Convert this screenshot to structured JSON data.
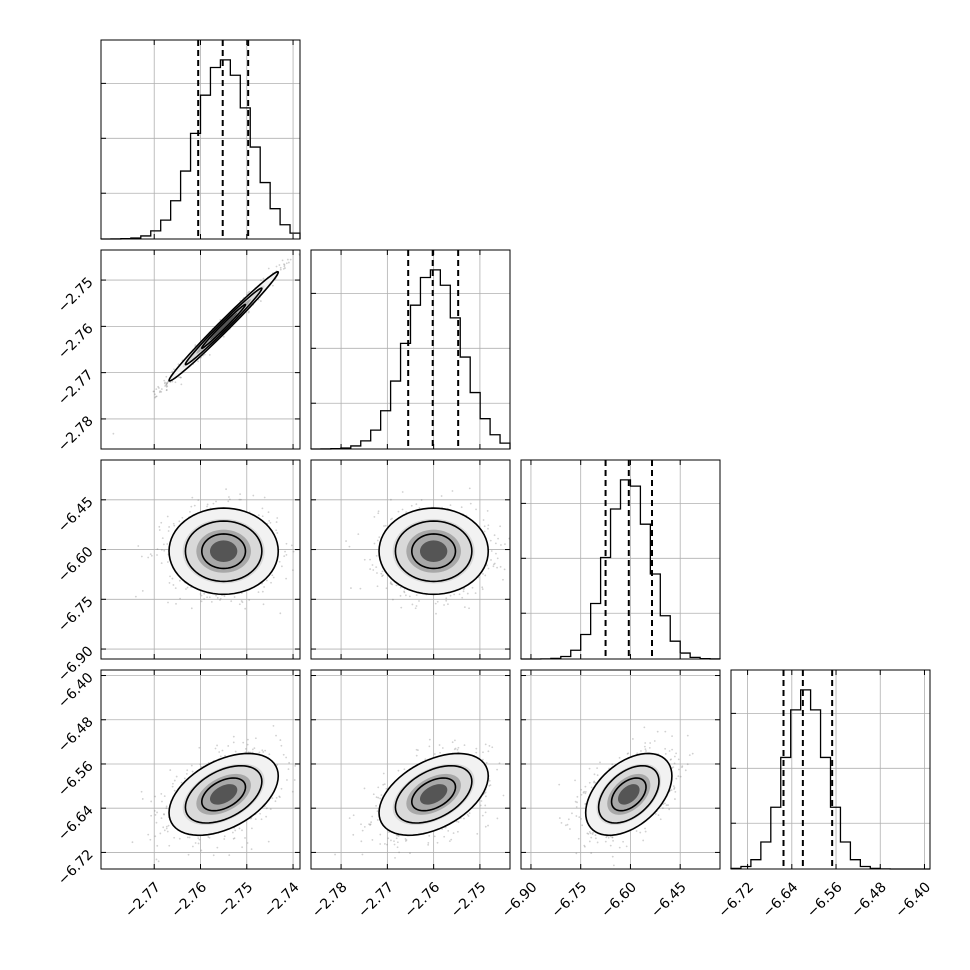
{
  "chart_data": {
    "type": "corner",
    "title": "",
    "n_params": 4,
    "parameters": [
      {
        "mean": -2.755,
        "std": 0.0059,
        "range": [
          -2.7815,
          -2.7385
        ],
        "quantiles": [
          -2.7605,
          -2.7552,
          -2.7497
        ],
        "ticks": [
          -2.77,
          -2.76,
          -2.75,
          -2.74
        ],
        "tick_labels": [
          "−2.77",
          "−2.76",
          "−2.75",
          "−2.74"
        ]
      },
      {
        "mean": -2.76,
        "std": 0.0059,
        "range": [
          -2.7865,
          -2.7435
        ],
        "quantiles": [
          -2.7655,
          -2.7602,
          -2.7547
        ],
        "ticks": [
          -2.78,
          -2.77,
          -2.76,
          -2.75
        ],
        "tick_labels": [
          "−2.78",
          "−2.77",
          "−2.76",
          "−2.75"
        ]
      },
      {
        "mean": -6.605,
        "std": 0.065,
        "range": [
          -6.93,
          -6.33
        ],
        "quantiles": [
          -6.675,
          -6.605,
          -6.535
        ],
        "ticks": [
          -6.9,
          -6.75,
          -6.6,
          -6.45
        ],
        "tick_labels": [
          "−6.90",
          "−6.75",
          "−6.60",
          "−6.45"
        ]
      },
      {
        "mean": -6.615,
        "std": 0.037,
        "range": [
          -6.75,
          -6.39
        ],
        "quantiles": [
          -6.655,
          -6.62,
          -6.567
        ],
        "ticks": [
          -6.72,
          -6.64,
          -6.56,
          -6.48,
          -6.4
        ],
        "tick_labels": [
          "−6.72",
          "−6.64",
          "−6.56",
          "−6.48",
          "−6.40"
        ]
      }
    ],
    "correlations": {
      "1-0": 0.99,
      "2-0": 0.0,
      "2-1": 0.0,
      "3-0": 0.45,
      "3-1": 0.45,
      "3-2": 0.45
    },
    "diagonal": "histogram",
    "off_diagonal": "2d-histogram-contours",
    "quantile_line_style": "dashed",
    "grid": true
  }
}
